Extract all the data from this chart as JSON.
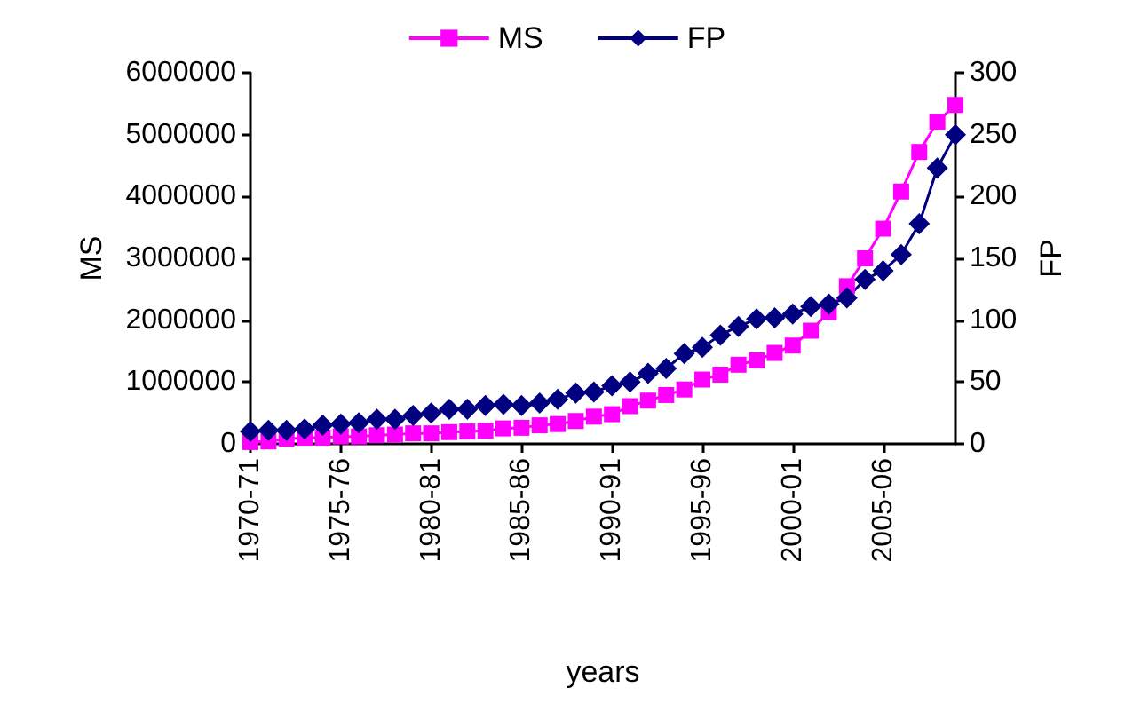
{
  "chart_data": {
    "type": "line",
    "xlabel": "years",
    "ylabel": "MS",
    "y2label": "FP",
    "categories": [
      "1970-71",
      null,
      null,
      null,
      null,
      "1975-76",
      null,
      null,
      null,
      null,
      "1980-81",
      null,
      null,
      null,
      null,
      "1985-86",
      null,
      null,
      null,
      null,
      "1990-91",
      null,
      null,
      null,
      null,
      "1995-96",
      null,
      null,
      null,
      null,
      "2000-01",
      null,
      null,
      null,
      null,
      "2005-06",
      null,
      null,
      null,
      null
    ],
    "series": [
      {
        "name": "MS",
        "color": "#ff00ff",
        "marker": "square",
        "values": [
          30000,
          40000,
          80000,
          100000,
          100000,
          120000,
          120000,
          140000,
          150000,
          170000,
          170000,
          190000,
          200000,
          210000,
          250000,
          260000,
          300000,
          320000,
          370000,
          440000,
          480000,
          610000,
          700000,
          790000,
          880000,
          1040000,
          1120000,
          1280000,
          1350000,
          1470000,
          1590000,
          1830000,
          2130000,
          2550000,
          3000000,
          3480000,
          4080000,
          4720000,
          5210000,
          5480000
        ]
      },
      {
        "name": "FP",
        "color": "#000080",
        "marker": "diamond",
        "axis": "y2",
        "values": [
          10,
          11,
          11,
          12,
          15,
          16,
          17,
          20,
          20,
          23,
          25,
          28,
          28,
          31,
          32,
          31,
          33,
          36,
          41,
          42,
          47,
          50,
          57,
          61,
          73,
          78,
          88,
          95,
          101,
          102,
          105,
          111,
          113,
          118,
          133,
          140,
          153,
          178,
          223,
          250
        ]
      }
    ],
    "ylim": [
      0,
      6000000
    ],
    "yticks": [
      0,
      1000000,
      2000000,
      3000000,
      4000000,
      5000000,
      6000000
    ],
    "y2lim": [
      0,
      300
    ],
    "y2ticks": [
      0,
      50,
      100,
      150,
      200,
      250,
      300
    ],
    "legend": "top",
    "grid": false,
    "line_style": "solid"
  }
}
